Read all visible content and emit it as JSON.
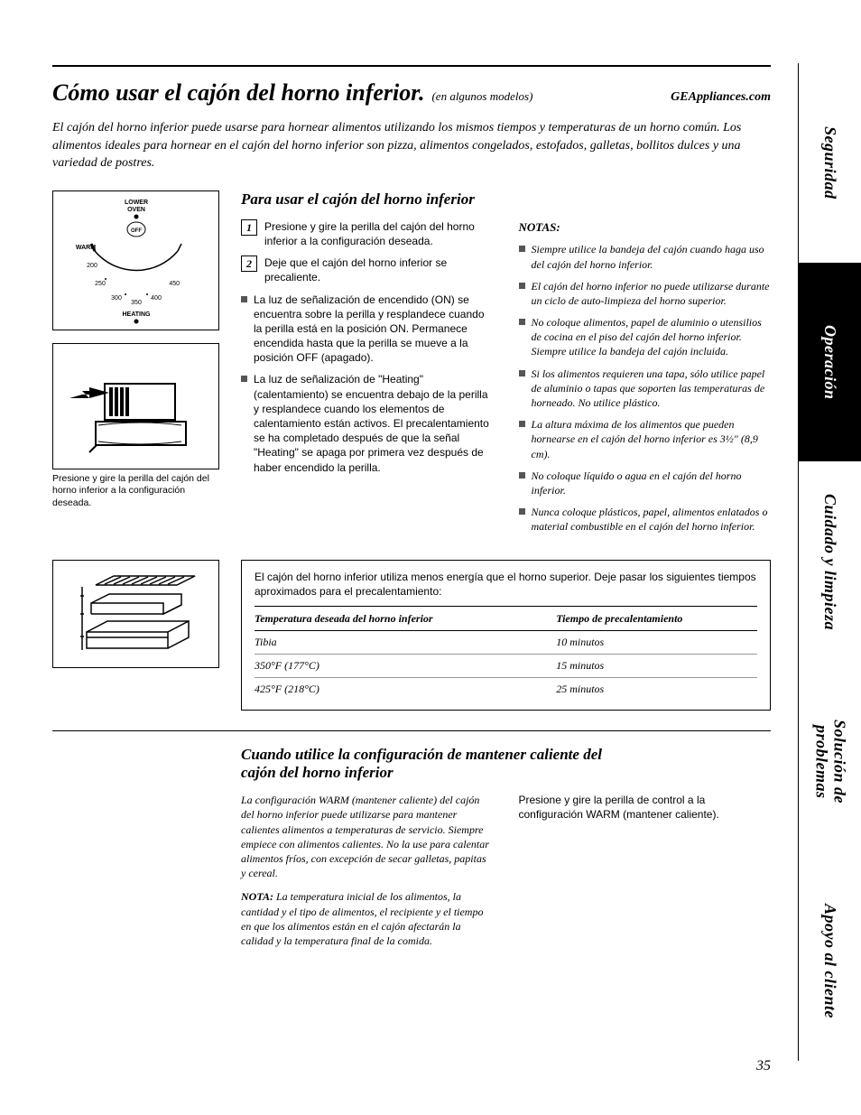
{
  "header": {
    "title": "Cómo usar el cajón del horno inferior.",
    "subtitle": "(en algunos modelos)",
    "url": "GEAppliances.com"
  },
  "intro": "El cajón del horno inferior puede usarse para hornear alimentos utilizando los mismos tiempos y temperaturas de un horno común. Los alimentos ideales para hornear en el cajón del horno inferior son pizza, alimentos congelados, estofados, galletas, bollitos dulces y una variedad de postres.",
  "dial": {
    "top_label": "LOWER OVEN",
    "off": "OFF",
    "warm": "WARM",
    "ticks": [
      "200",
      "250",
      "300",
      "350",
      "400",
      "450"
    ],
    "bottom_label": "HEATING"
  },
  "caption": "Presione y gire la perilla del cajón del horno inferior a la configuración deseada.",
  "section1_title": "Para usar el cajón del horno inferior",
  "steps": [
    {
      "n": "1",
      "t": "Presione y gire la perilla del cajón del horno inferior a la configuración deseada."
    },
    {
      "n": "2",
      "t": "Deje que el cajón del horno inferior se precaliente."
    }
  ],
  "bullets_left": [
    "La luz de señalización de encendido (ON) se encuentra sobre la perilla y resplandece cuando la perilla está en la posición ON. Permanece encendida hasta que la perilla se mueve a la posición OFF (apagado).",
    "La luz de señalización de \"Heating\" (calentamiento) se encuentra debajo de la perilla y resplandece cuando los elementos de calentamiento están activos. El precalentamiento se ha completado después de que la señal \"Heating\" se apaga por primera vez después de haber encendido la perilla."
  ],
  "notes_head": "NOTAS:",
  "notes": [
    "Siempre utilice la bandeja del cajón cuando haga uso del cajón del horno inferior.",
    "El cajón del horno inferior no puede utilizarse durante un ciclo de auto-limpieza del horno superior.",
    "No coloque alimentos, papel de aluminio o utensilios de cocina en el piso del cajón del horno inferior. Siempre utilice la bandeja del cajón incluida.",
    "Si los alimentos requieren una tapa, sólo utilice papel de aluminio o tapas que soporten las temperaturas de horneado. No utilice plástico.",
    "La altura máxima de los alimentos que pueden hornearse en el cajón del horno inferior es 3½\" (8,9 cm).",
    "No coloque líquido o agua en el cajón del horno inferior.",
    "Nunca coloque plásticos, papel, alimentos enlatados o material combustible en el cajón del horno inferior."
  ],
  "table": {
    "intro": "El cajón del horno inferior utiliza menos energía que el horno superior. Deje pasar los siguientes tiempos aproximados para el precalentamiento:",
    "col1_head": "Temperatura deseada del horno inferior",
    "col2_head": "Tiempo de precalentamiento",
    "rows": [
      {
        "c1": "Tibia",
        "c2": "10 minutos"
      },
      {
        "c1": "350°F (177°C)",
        "c2": "15 minutos"
      },
      {
        "c1": "425°F (218°C)",
        "c2": "25 minutos"
      }
    ]
  },
  "section2_title": "Cuando utilice la configuración de mantener caliente del cajón del horno inferior",
  "warm": {
    "p1": "La configuración WARM (mantener caliente) del cajón del horno inferior puede utilizarse para mantener calientes alimentos a temperaturas de servicio. Siempre empiece con alimentos calientes. No la use para calentar alimentos fríos, con excepción de secar galletas, papitas y cereal.",
    "nota_label": "NOTA:",
    "nota_text": " La temperatura inicial de los alimentos, la cantidad y el tipo de alimentos, el recipiente y el tiempo en que los alimentos están en el cajón afectarán la calidad y la temperatura final de la comida.",
    "p2": "Presione y gire la perilla de control a la configuración WARM (mantener caliente)."
  },
  "tabs": [
    {
      "label": "Seguridad",
      "active": false
    },
    {
      "label": "Operación",
      "active": true
    },
    {
      "label": "Cuidado y limpieza",
      "active": false
    },
    {
      "label": "Solución de\nproblemas",
      "active": false,
      "twoline": true
    },
    {
      "label": "Apoyo al cliente",
      "active": false
    }
  ],
  "page_num": "35"
}
